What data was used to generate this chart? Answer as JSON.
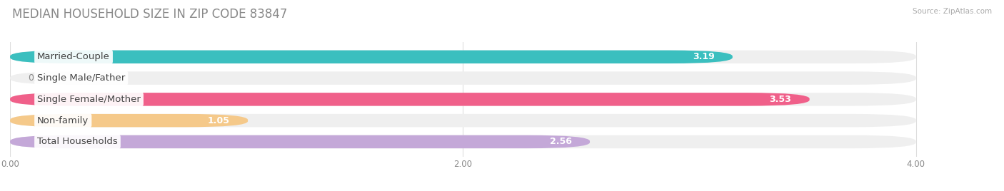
{
  "title": "MEDIAN HOUSEHOLD SIZE IN ZIP CODE 83847",
  "source": "Source: ZipAtlas.com",
  "categories": [
    "Married-Couple",
    "Single Male/Father",
    "Single Female/Mother",
    "Non-family",
    "Total Households"
  ],
  "values": [
    3.19,
    0.0,
    3.53,
    1.05,
    2.56
  ],
  "bar_colors": [
    "#3bbfbf",
    "#a8bce8",
    "#f0608a",
    "#f5c98a",
    "#c4a8d8"
  ],
  "bar_bg_color": "#efefef",
  "xlim": [
    0,
    4.3
  ],
  "x_max_display": 4.0,
  "xticks": [
    0.0,
    2.0,
    4.0
  ],
  "xtick_labels": [
    "0.00",
    "2.00",
    "4.00"
  ],
  "value_fontsize": 9,
  "label_fontsize": 9.5,
  "title_fontsize": 12,
  "background_color": "#ffffff",
  "bar_height": 0.62,
  "rounding_size": 0.28,
  "label_box_color": "#ffffff",
  "value_color_inside": "#ffffff",
  "value_color_outside": "#888888",
  "title_color": "#888888",
  "source_color": "#aaaaaa",
  "grid_color": "#dddddd"
}
